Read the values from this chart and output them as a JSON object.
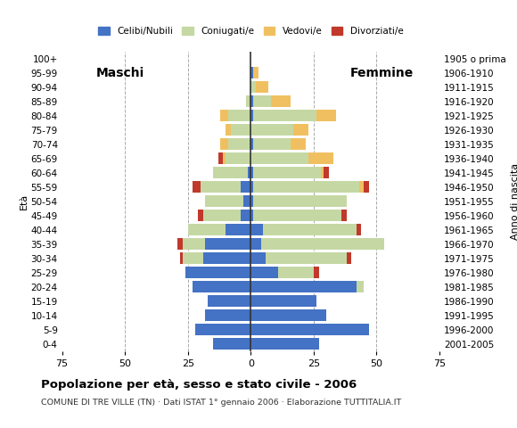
{
  "age_groups": [
    "0-4",
    "5-9",
    "10-14",
    "15-19",
    "20-24",
    "25-29",
    "30-34",
    "35-39",
    "40-44",
    "45-49",
    "50-54",
    "55-59",
    "60-64",
    "65-69",
    "70-74",
    "75-79",
    "80-84",
    "85-89",
    "90-94",
    "95-99",
    "100+"
  ],
  "birth_years": [
    "2001-2005",
    "1996-2000",
    "1991-1995",
    "1986-1990",
    "1981-1985",
    "1976-1980",
    "1971-1975",
    "1966-1970",
    "1961-1965",
    "1956-1960",
    "1951-1955",
    "1946-1950",
    "1941-1945",
    "1936-1940",
    "1931-1935",
    "1926-1930",
    "1921-1925",
    "1916-1920",
    "1911-1915",
    "1906-1910",
    "1905 o prima"
  ],
  "males": {
    "celibe": [
      15,
      22,
      18,
      17,
      23,
      26,
      19,
      18,
      10,
      4,
      3,
      4,
      1,
      0,
      0,
      0,
      0,
      0,
      0,
      0,
      0
    ],
    "coniugato": [
      0,
      0,
      0,
      0,
      0,
      0,
      8,
      9,
      15,
      15,
      15,
      16,
      14,
      10,
      9,
      8,
      9,
      2,
      0,
      0,
      0
    ],
    "vedovo": [
      0,
      0,
      0,
      0,
      0,
      0,
      0,
      0,
      0,
      0,
      0,
      0,
      0,
      1,
      3,
      2,
      3,
      0,
      0,
      0,
      0
    ],
    "divorziato": [
      0,
      0,
      0,
      0,
      0,
      0,
      1,
      2,
      0,
      2,
      0,
      3,
      0,
      2,
      0,
      0,
      0,
      0,
      0,
      0,
      0
    ]
  },
  "females": {
    "nubile": [
      27,
      47,
      30,
      26,
      42,
      11,
      6,
      4,
      5,
      1,
      1,
      1,
      1,
      0,
      1,
      0,
      1,
      1,
      0,
      1,
      0
    ],
    "coniugata": [
      0,
      0,
      0,
      0,
      3,
      14,
      32,
      49,
      37,
      35,
      37,
      42,
      27,
      23,
      15,
      17,
      25,
      7,
      2,
      0,
      0
    ],
    "vedova": [
      0,
      0,
      0,
      0,
      0,
      0,
      0,
      0,
      0,
      0,
      0,
      2,
      1,
      10,
      6,
      6,
      8,
      8,
      5,
      2,
      0
    ],
    "divorziata": [
      0,
      0,
      0,
      0,
      0,
      2,
      2,
      0,
      2,
      2,
      0,
      2,
      2,
      0,
      0,
      0,
      0,
      0,
      0,
      0,
      0
    ]
  },
  "colors": {
    "celibe_nubile": "#4472c4",
    "coniugato_coniugata": "#c5d8a4",
    "vedovo_vedova": "#f0c060",
    "divorziato_divorziata": "#c0392b"
  },
  "title": "Popolazione per età, sesso e stato civile - 2006",
  "subtitle": "COMUNE DI TRE VILLE (TN) · Dati ISTAT 1° gennaio 2006 · Elaborazione TUTTITALIA.IT",
  "xlabel_left": "Maschi",
  "xlabel_right": "Femmine",
  "ylabel_left": "Età",
  "ylabel_right": "Anno di nascita",
  "xlim": 75,
  "legend_labels": [
    "Celibi/Nubili",
    "Coniugati/e",
    "Vedovi/e",
    "Divorziati/e"
  ],
  "background_color": "#ffffff"
}
